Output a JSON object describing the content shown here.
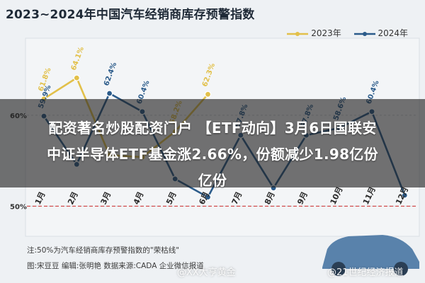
{
  "title": "2023~2024年中国汽车经销商库存预警指数",
  "legend": [
    {
      "label": "2023年",
      "color": "#e2c04a"
    },
    {
      "label": "2024年",
      "color": "#2b5b8a"
    }
  ],
  "chart_data": {
    "type": "line",
    "categories": [
      "1月",
      "2月",
      "3月",
      "4月",
      "5月",
      "6月",
      "7月",
      "8月",
      "9月",
      "10月",
      "11月",
      "12月"
    ],
    "series": [
      {
        "name": "2023年",
        "values": [
          61.8,
          64.1,
          55.6,
          55.4,
          58.2,
          62.3,
          null,
          null,
          null,
          null,
          null,
          null
        ],
        "labels": [
          "61.8%",
          "64.1%",
          "",
          "",
          "58.2%",
          "62.3%",
          "",
          "",
          "",
          "",
          "",
          ""
        ]
      },
      {
        "name": "2024年",
        "values": [
          59.9,
          54.6,
          62.4,
          60.4,
          53.0,
          51.0,
          57.8,
          52.0,
          57.8,
          58.6,
          60.4,
          51.2
        ],
        "labels": [
          "59.9%",
          "",
          "62.4%",
          "60.4%",
          "",
          "",
          "57.8%",
          "",
          "57.8%",
          "58.6%",
          "60.4%",
          ""
        ]
      }
    ],
    "ylim": [
      47,
      68
    ],
    "yticks": [
      "60%",
      "50%"
    ],
    "threshold": {
      "value": 50,
      "label": "50%"
    }
  },
  "overlay": {
    "line1": "配资著名炒股配资门户 【ETF动向】3月6日国联安",
    "line2": "中证半导体ETF基金涨2.66%，份额减少1.98亿份",
    "line3": "亿份"
  },
  "footer": {
    "note": "注:50%为汽车经销商库存预警指数的\"荣枯线\"",
    "credits": "图:宋豆豆  编辑:张明艳  数据来源:CADA 企业微信报道"
  },
  "watermarks": {
    "left": "@XX大亨黄金",
    "right": "@21世纪经济报道"
  }
}
